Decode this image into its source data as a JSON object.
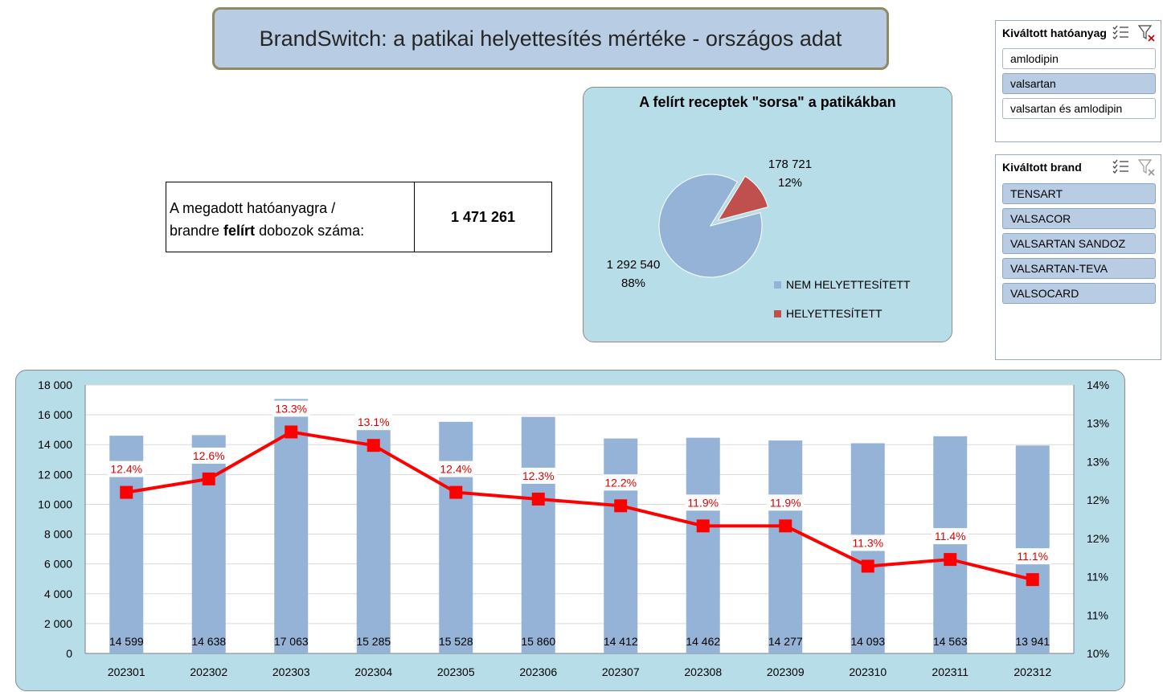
{
  "title": "BrandSwitch: a patikai helyettesítés mértéke - országos adat",
  "info_box": {
    "label_part1": "A megadott hatóanyagra /",
    "label_part2_prefix": "brandre ",
    "label_part2_bold": "felírt",
    "label_part2_suffix": " dobozok száma:",
    "value": "1 471 261"
  },
  "pie_panel": {
    "title": "A felírt receptek \"sorsa\" a patikákban",
    "legend": [
      {
        "label": "NEM HELYETTESÍTETT",
        "color": "#95b3d7"
      },
      {
        "label": "HELYETTESÍTETT",
        "color": "#c0504d"
      }
    ]
  },
  "slicers": {
    "substance": {
      "header": "Kiváltott hatóanyag",
      "items": [
        {
          "label": "amlodipin",
          "selected": false
        },
        {
          "label": "valsartan",
          "selected": true
        },
        {
          "label": "valsartan és amlodipin",
          "selected": false
        }
      ]
    },
    "brand": {
      "header": "Kiváltott brand",
      "items": [
        {
          "label": "TENSART",
          "selected": true
        },
        {
          "label": "VALSACOR",
          "selected": true
        },
        {
          "label": "VALSARTAN SANDOZ",
          "selected": true
        },
        {
          "label": "VALSARTAN-TEVA",
          "selected": true
        },
        {
          "label": "VALSOCARD",
          "selected": true
        }
      ]
    }
  },
  "chart_data": [
    {
      "type": "pie",
      "title": "A felírt receptek \"sorsa\" a patikákban",
      "series": [
        {
          "name": "NEM HELYETTESÍTETT",
          "value": 1292540,
          "value_label": "1 292 540",
          "percent_label": "88%",
          "color": "#95b3d7"
        },
        {
          "name": "HELYETTESÍTETT",
          "value": 178721,
          "value_label": "178 721",
          "percent_label": "12%",
          "color": "#c0504d"
        }
      ],
      "exploded": "HELYETTESÍTETT"
    },
    {
      "type": "bar+line",
      "categories": [
        "202301",
        "202302",
        "202303",
        "202304",
        "202305",
        "202306",
        "202307",
        "202308",
        "202309",
        "202310",
        "202311",
        "202312"
      ],
      "bars": {
        "values": [
          14599,
          14638,
          17063,
          15285,
          15528,
          15860,
          14412,
          14462,
          14277,
          14093,
          14563,
          13941
        ],
        "labels": [
          "14 599",
          "14 638",
          "17 063",
          "15 285",
          "15 528",
          "15 860",
          "14 412",
          "14 462",
          "14 277",
          "14 093",
          "14 563",
          "13 941"
        ],
        "color": "#95b3d7"
      },
      "line": {
        "values": [
          12.4,
          12.6,
          13.3,
          13.1,
          12.4,
          12.3,
          12.2,
          11.9,
          11.9,
          11.3,
          11.4,
          11.1
        ],
        "labels": [
          "12.4%",
          "12.6%",
          "13.3%",
          "13.1%",
          "12.4%",
          "12.3%",
          "12.2%",
          "11.9%",
          "11.9%",
          "11.3%",
          "11.4%",
          "11.1%"
        ],
        "color": "#ff0000"
      },
      "y_left": {
        "range": [
          0,
          18000
        ],
        "ticks": [
          0,
          2000,
          4000,
          6000,
          8000,
          10000,
          12000,
          14000,
          16000,
          18000
        ],
        "tick_labels": [
          "0",
          "2 000",
          "4 000",
          "6 000",
          "8 000",
          "10 000",
          "12 000",
          "14 000",
          "16 000",
          "18 000"
        ]
      },
      "y_right": {
        "range": [
          10,
          14
        ],
        "tick_labels": [
          "10%",
          "11%",
          "11%",
          "12%",
          "12%",
          "13%",
          "13%",
          "14%"
        ]
      },
      "grid": true
    }
  ]
}
